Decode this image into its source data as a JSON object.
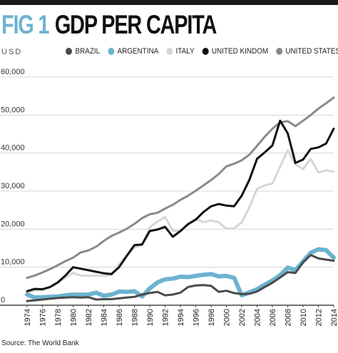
{
  "header": {
    "fig_label": "FIG 1",
    "title": "GDP PER CAPITA",
    "units": "USD"
  },
  "source": "Source: The World Bank",
  "colors": {
    "fig_label": "#6bb3d0",
    "title": "#111111",
    "top_rule": "#1a1a1a"
  },
  "chart_data": {
    "type": "line",
    "title": "GDP PER CAPITA",
    "ylabel": "USD",
    "xlabel": "",
    "ylim": [
      0,
      60000
    ],
    "yticks": [
      0,
      10000,
      20000,
      30000,
      40000,
      50000,
      60000
    ],
    "ytick_labels": [
      "0",
      "10,000",
      "20,000",
      "30,000",
      "40,000",
      "50,000",
      "60,000"
    ],
    "xlim": [
      1974,
      2014
    ],
    "xticks": [
      "1974",
      "1976",
      "1978",
      "1980",
      "1982",
      "1984",
      "1986",
      "1988",
      "1990",
      "1992",
      "1994",
      "1996",
      "1998",
      "2000",
      "2002",
      "2004",
      "2006",
      "2008",
      "2010",
      "2012",
      "2014"
    ],
    "grid": "horizontal",
    "legend_position": "top",
    "x": [
      1974,
      1975,
      1976,
      1977,
      1978,
      1979,
      1980,
      1981,
      1982,
      1983,
      1984,
      1985,
      1986,
      1987,
      1988,
      1989,
      1990,
      1991,
      1992,
      1993,
      1994,
      1995,
      1996,
      1997,
      1998,
      1999,
      2000,
      2001,
      2002,
      2003,
      2004,
      2005,
      2006,
      2007,
      2008,
      2009,
      2010,
      2011,
      2012,
      2013,
      2014
    ],
    "series": [
      {
        "name": "BRAZIL",
        "color": "#4a4a4a",
        "width": 3,
        "values": [
          1100,
          1300,
          1500,
          1700,
          1900,
          2000,
          2100,
          2000,
          2100,
          1500,
          1600,
          1600,
          1800,
          2000,
          2200,
          2800,
          3200,
          3500,
          2600,
          2800,
          3300,
          4800,
          5200,
          5300,
          5100,
          3500,
          3800,
          3200,
          2900,
          3000,
          3600,
          4800,
          5900,
          7300,
          8700,
          8500,
          11300,
          13200,
          12300,
          12000,
          11700
        ]
      },
      {
        "name": "ARGENTINA",
        "color": "#6bb3d0",
        "width": 6,
        "values": [
          2800,
          2000,
          2100,
          2200,
          2300,
          2600,
          2800,
          2800,
          2800,
          3300,
          2500,
          2800,
          3600,
          3500,
          3700,
          2300,
          4400,
          6000,
          6800,
          7000,
          7500,
          7400,
          7700,
          8000,
          8200,
          7600,
          7700,
          7200,
          2600,
          3400,
          4200,
          5400,
          6500,
          7900,
          9900,
          9200,
          11500,
          13800,
          14700,
          14500,
          12500
        ]
      },
      {
        "name": "ITALY",
        "color": "#d6d6d6",
        "width": 3,
        "values": [
          3300,
          3900,
          4000,
          4700,
          5800,
          7300,
          8500,
          7800,
          7700,
          7800,
          7800,
          7900,
          10800,
          13000,
          15200,
          15800,
          20500,
          22000,
          23200,
          19600,
          19500,
          21500,
          22800,
          21800,
          22300,
          21800,
          20100,
          20200,
          21800,
          25800,
          30600,
          31500,
          32000,
          36400,
          40700,
          37000,
          35800,
          38500,
          34900,
          35500,
          35100
        ]
      },
      {
        "name": "UNITED KINDOM",
        "color": "#111111",
        "width": 3,
        "values": [
          3700,
          4300,
          4200,
          4800,
          6000,
          7800,
          10000,
          9600,
          9200,
          8800,
          8400,
          8200,
          10000,
          13000,
          15800,
          16000,
          19500,
          19900,
          20600,
          18000,
          19500,
          21300,
          22500,
          24500,
          26000,
          26600,
          26200,
          26000,
          28800,
          33000,
          38500,
          40200,
          42000,
          48500,
          45200,
          37400,
          38300,
          41100,
          41500,
          42500,
          46400
        ]
      },
      {
        "name": "UNITED STATES",
        "color": "#8a8a8a",
        "width": 3,
        "values": [
          7200,
          7800,
          8600,
          9500,
          10500,
          11600,
          12500,
          13900,
          14400,
          15400,
          16900,
          18200,
          19100,
          20100,
          21400,
          22900,
          23900,
          24300,
          25400,
          26400,
          27700,
          28800,
          30100,
          31500,
          32900,
          34500,
          36500,
          37200,
          38100,
          39600,
          41900,
          44300,
          46400,
          48100,
          48400,
          47100,
          48500,
          50000,
          51700,
          53100,
          54600
        ]
      }
    ]
  }
}
